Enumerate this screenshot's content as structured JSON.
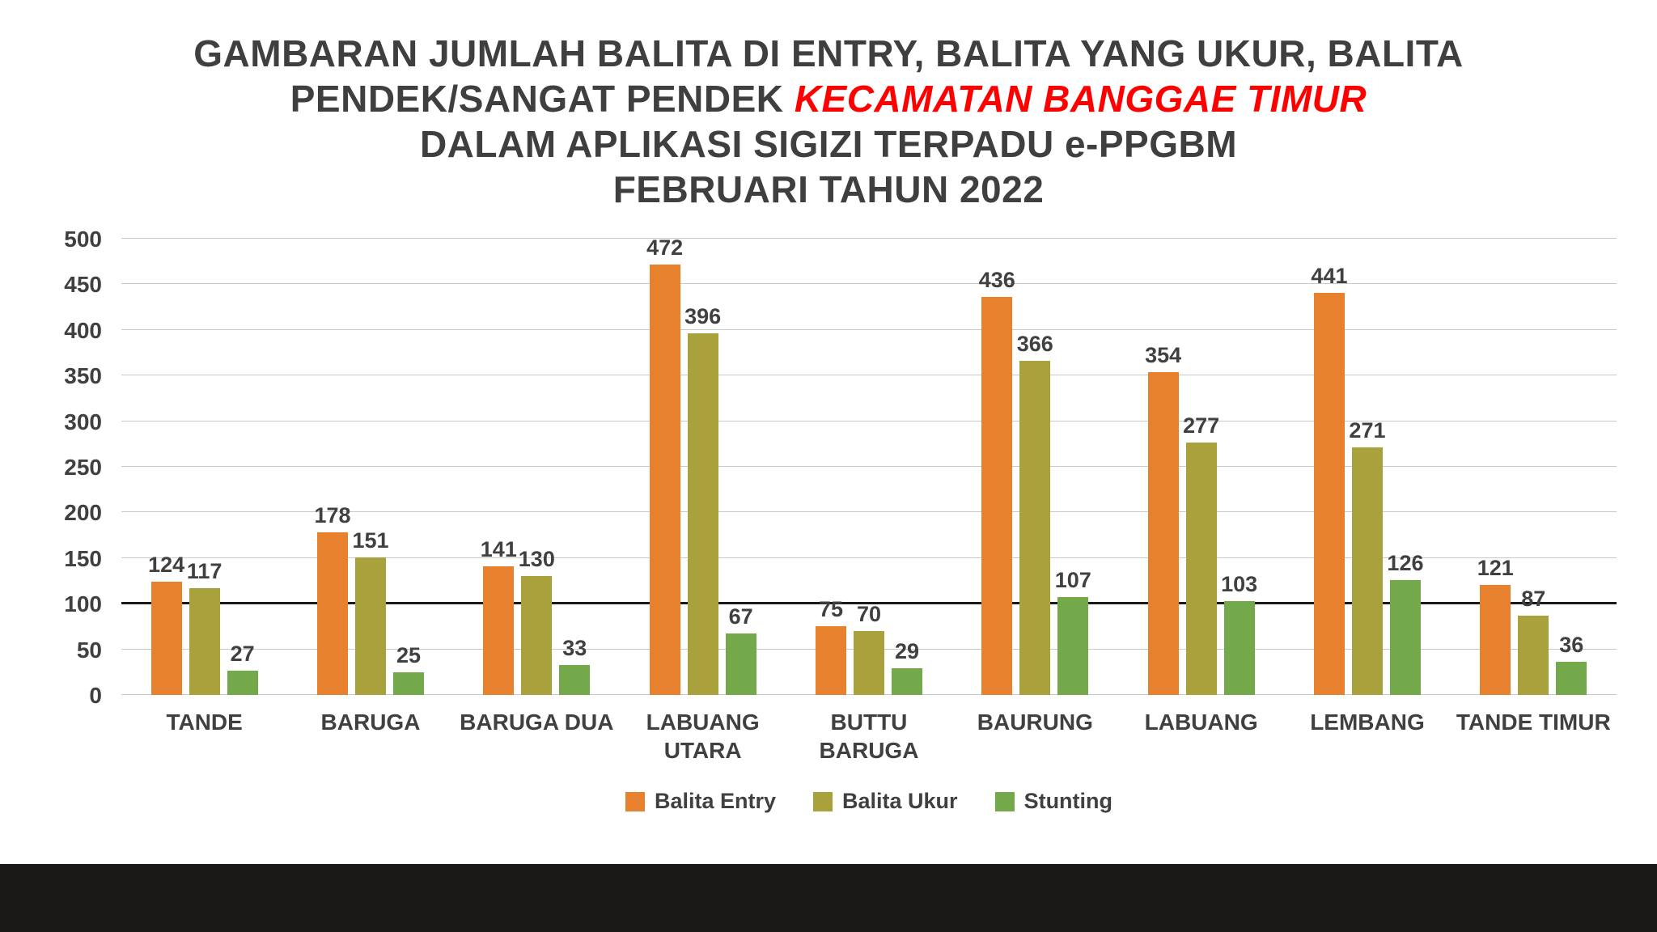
{
  "title": {
    "line1": "GAMBARAN JUMLAH BALITA DI ENTRY, BALITA YANG UKUR, BALITA",
    "line2_prefix": "PENDEK/SANGAT PENDEK ",
    "line2_highlight": "KECAMATAN BANGGAE TIMUR",
    "line3": "DALAM APLIKASI SIGIZI TERPADU e-PPGBM",
    "line4": "FEBRUARI TAHUN 2022"
  },
  "colors": {
    "balita_entry": "#e8812d",
    "balita_ukur": "#a9a23c",
    "stunting": "#74a94b",
    "title_text": "#3f3f3f",
    "highlight_text": "#ff0000",
    "gridline": "#c9c9c9",
    "reference_line": "#1a1a1a",
    "footer_bar": "#1b1818"
  },
  "chart_data": {
    "type": "bar",
    "categories": [
      "TANDE",
      "BARUGA",
      "BARUGA DUA",
      "LABUANG\nUTARA",
      "BUTTU\nBARUGA",
      "BAURUNG",
      "LABUANG",
      "LEMBANG",
      "TANDE TIMUR"
    ],
    "series": [
      {
        "name": "Balita Entry",
        "color_key": "balita_entry",
        "values": [
          124,
          178,
          141,
          472,
          75,
          436,
          354,
          441,
          121
        ]
      },
      {
        "name": "Balita Ukur",
        "color_key": "balita_ukur",
        "values": [
          117,
          151,
          130,
          396,
          70,
          366,
          277,
          271,
          87
        ]
      },
      {
        "name": "Stunting",
        "color_key": "stunting",
        "values": [
          27,
          25,
          33,
          67,
          29,
          107,
          103,
          126,
          36
        ]
      }
    ],
    "ylim": [
      0,
      500
    ],
    "ytick_step": 50,
    "reference_line": 100,
    "grid": true,
    "legend_position": "bottom"
  }
}
